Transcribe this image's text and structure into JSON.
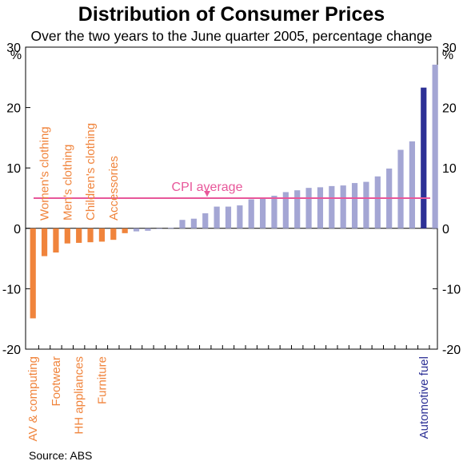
{
  "colors": {
    "falling": "#f0843c",
    "rising": "#a4a6d4",
    "highlight": "#2d3196",
    "cpi_line": "#e8579a",
    "axis": "#000000",
    "label_text_orange": "#f0843c",
    "label_text_blue": "#2d3196"
  },
  "chart_data": {
    "type": "bar",
    "title": "Distribution of Consumer Prices",
    "subtitle": "Over the two years to the June quarter 2005, percentage change",
    "ylabel_left": "%",
    "ylabel_right": "%",
    "ylim": [
      -20,
      30
    ],
    "yticks": [
      30,
      20,
      10,
      0,
      -10,
      -20
    ],
    "ytick_labels": [
      "30",
      "20",
      "10",
      "0",
      "-10",
      "-20"
    ],
    "grid": false,
    "values": [
      -14.9,
      -4.6,
      -4.0,
      -2.5,
      -2.4,
      -2.3,
      -2.2,
      -1.9,
      -0.8,
      -0.5,
      -0.4,
      -0.1,
      0.1,
      1.4,
      1.6,
      2.5,
      3.6,
      3.6,
      3.8,
      4.8,
      5.0,
      5.4,
      6.0,
      6.3,
      6.7,
      6.8,
      7.0,
      7.1,
      7.5,
      7.7,
      8.6,
      9.9,
      13.0,
      14.4,
      23.3,
      27.1
    ],
    "bar_groups": [
      "falling",
      "falling",
      "falling",
      "falling",
      "falling",
      "falling",
      "falling",
      "falling",
      "falling",
      "rising",
      "rising",
      "rising",
      "rising",
      "rising",
      "rising",
      "rising",
      "rising",
      "rising",
      "rising",
      "rising",
      "rising",
      "rising",
      "rising",
      "rising",
      "rising",
      "rising",
      "rising",
      "rising",
      "rising",
      "rising",
      "rising",
      "rising",
      "rising",
      "rising",
      "highlight",
      "rising"
    ],
    "cpi_average": {
      "label": "CPI average",
      "value": 5.0
    },
    "top_labels": [
      {
        "text": "Women's clothing",
        "bar": 1
      },
      {
        "text": "Men's clothing",
        "bar": 3
      },
      {
        "text": "Children's clothing",
        "bar": 5
      },
      {
        "text": "Accessories",
        "bar": 7
      }
    ],
    "bottom_labels": [
      {
        "text": "AV & computing",
        "bar": 0,
        "color": "orange"
      },
      {
        "text": "Footwear",
        "bar": 2,
        "color": "orange"
      },
      {
        "text": "HH appliances",
        "bar": 4,
        "color": "orange"
      },
      {
        "text": "Furniture",
        "bar": 6,
        "color": "orange"
      },
      {
        "text": "Automotive fuel",
        "bar": 34,
        "color": "blue"
      }
    ]
  },
  "source": "Source: ABS"
}
